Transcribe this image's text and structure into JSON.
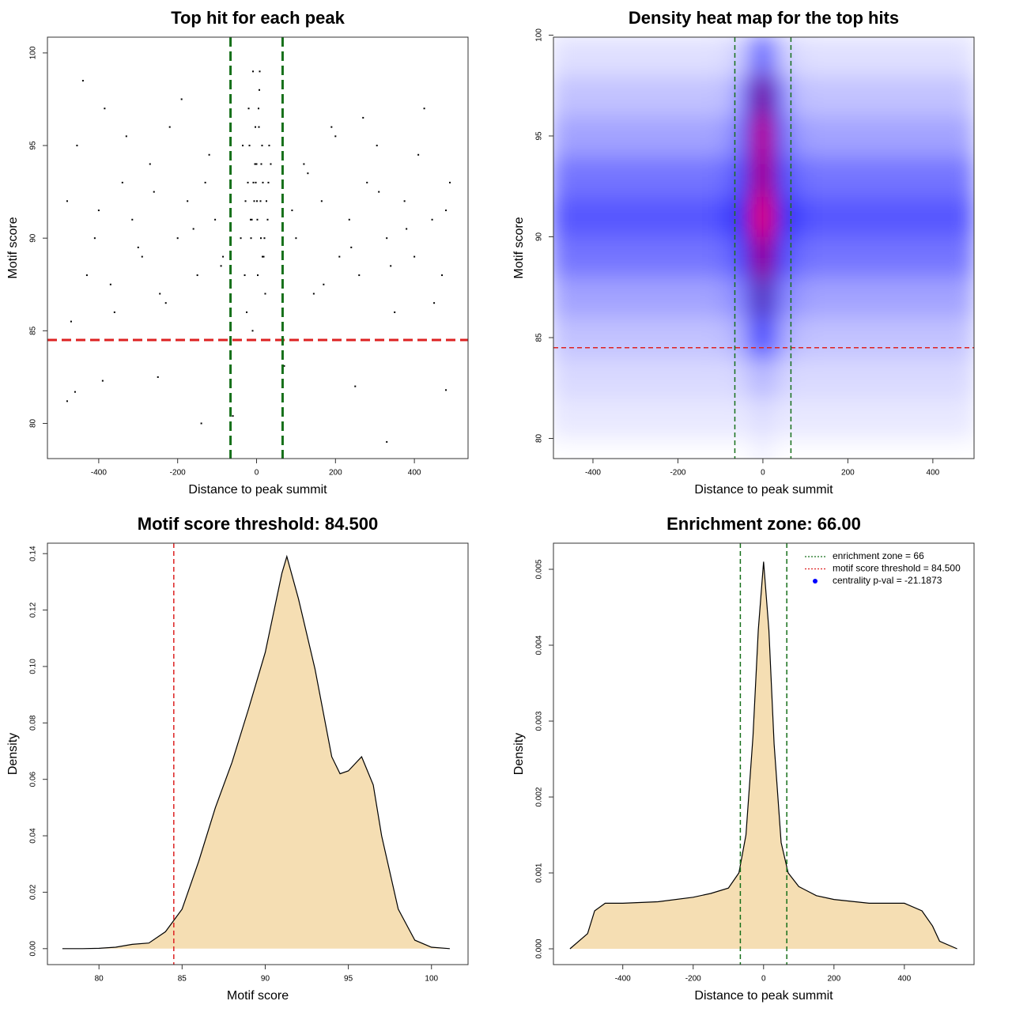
{
  "chart_data": [
    {
      "type": "scatter",
      "title": "Top hit for each peak",
      "x_label": "Distance to peak summit",
      "y_label": "Motif score",
      "xlim": [
        -530,
        536
      ],
      "ylim": [
        78.1,
        100.85
      ],
      "xticks": [
        -400,
        -200,
        0,
        200,
        400
      ],
      "yticks": [
        80,
        85,
        90,
        95,
        100
      ],
      "color": "#000000",
      "hlines": [
        {
          "value": 84.5,
          "color": "#dd2222"
        }
      ],
      "vlines": [
        {
          "value": -66,
          "color": "#16701a"
        },
        {
          "value": 66,
          "color": "#16701a"
        }
      ],
      "x": [
        -480,
        -455,
        -430,
        -410,
        -385,
        -360,
        -340,
        -315,
        -290,
        -270,
        -245,
        -220,
        -200,
        -175,
        -150,
        -130,
        -105,
        -85,
        100,
        120,
        145,
        165,
        190,
        210,
        235,
        260,
        280,
        305,
        330,
        350,
        375,
        400,
        425,
        445,
        470,
        490,
        -470,
        -440,
        -400,
        -370,
        -330,
        -300,
        -260,
        -230,
        -190,
        -160,
        -120,
        -90,
        90,
        130,
        170,
        200,
        240,
        270,
        310,
        340,
        380,
        410,
        450,
        480,
        -35,
        -28,
        -20,
        -14,
        -8,
        -3,
        2,
        7,
        12,
        18,
        25,
        32,
        -30,
        -22,
        -15,
        -9,
        -4,
        1,
        6,
        11,
        16,
        22,
        28,
        36,
        -40,
        -18,
        -6,
        5,
        15,
        30,
        -25,
        -12,
        0,
        10,
        20,
        -10,
        3,
        8,
        -2,
        14,
        -480,
        -460,
        -390,
        -250,
        -140,
        -60,
        70,
        250,
        330,
        480
      ],
      "values": [
        92,
        95,
        88,
        90,
        97,
        86,
        93,
        91,
        89,
        94,
        87,
        96,
        90,
        92,
        88,
        93,
        91,
        89,
        90,
        94,
        87,
        92,
        96,
        89,
        91,
        88,
        93,
        95,
        90,
        86,
        92,
        89,
        97,
        91,
        88,
        93,
        85.5,
        98.5,
        91.5,
        87.5,
        95.5,
        89.5,
        92.5,
        86.5,
        97.5,
        90.5,
        94.5,
        88.5,
        91.5,
        93.5,
        87.5,
        95.5,
        89.5,
        96.5,
        92.5,
        88.5,
        90.5,
        94.5,
        86.5,
        91.5,
        95,
        92,
        97,
        90,
        93,
        96,
        91,
        98,
        94,
        89,
        92,
        95,
        88,
        93,
        91,
        99,
        94,
        92,
        96,
        90,
        93,
        87,
        91,
        94,
        90,
        95,
        92,
        97,
        89,
        93,
        86,
        91,
        94,
        92,
        90,
        85,
        88,
        99,
        93,
        95,
        81.2,
        81.7,
        82.3,
        82.5,
        80,
        80.4,
        83.1,
        82,
        79,
        81.8
      ]
    },
    {
      "type": "heatmap",
      "title": "Density heat map for the top hits",
      "x_label": "Distance to peak summit",
      "y_label": "Motif score",
      "xlim": [
        -493,
        497
      ],
      "ylim": [
        79.0,
        99.9
      ],
      "xticks": [
        -400,
        -200,
        0,
        200,
        400
      ],
      "yticks": [
        80,
        85,
        90,
        95,
        100
      ],
      "colors": [
        "#ffffff",
        "#0000ff",
        "#7a0a6e",
        "#ff0000"
      ],
      "hlines": [
        {
          "value": 84.5,
          "color": "#dd2222"
        }
      ],
      "vlines": [
        {
          "value": -66,
          "color": "#16701a"
        },
        {
          "value": 66,
          "color": "#16701a"
        }
      ],
      "x_edges": [
        -500,
        -400,
        -300,
        -200,
        -100,
        -50,
        -20,
        20,
        50,
        100,
        200,
        300,
        400,
        500
      ],
      "y_edges": [
        78,
        80,
        82,
        84,
        86,
        88,
        90,
        92,
        94,
        96,
        98,
        100
      ],
      "z": [
        [
          0,
          0,
          0,
          0,
          0,
          0,
          0.02,
          0,
          0,
          0,
          0,
          0,
          0
        ],
        [
          0.03,
          0.03,
          0.03,
          0.03,
          0.03,
          0.03,
          0.05,
          0.03,
          0.03,
          0.03,
          0.03,
          0.03,
          0.03
        ],
        [
          0.05,
          0.05,
          0.05,
          0.05,
          0.05,
          0.07,
          0.1,
          0.07,
          0.05,
          0.05,
          0.05,
          0.05,
          0.05
        ],
        [
          0.08,
          0.08,
          0.08,
          0.08,
          0.09,
          0.15,
          0.3,
          0.15,
          0.09,
          0.08,
          0.08,
          0.08,
          0.08
        ],
        [
          0.12,
          0.12,
          0.12,
          0.12,
          0.14,
          0.2,
          0.55,
          0.2,
          0.14,
          0.12,
          0.12,
          0.12,
          0.12
        ],
        [
          0.18,
          0.18,
          0.18,
          0.18,
          0.2,
          0.35,
          0.8,
          0.35,
          0.2,
          0.18,
          0.18,
          0.18,
          0.18
        ],
        [
          0.22,
          0.22,
          0.22,
          0.22,
          0.25,
          0.42,
          1.0,
          0.42,
          0.25,
          0.22,
          0.22,
          0.22,
          0.22
        ],
        [
          0.18,
          0.18,
          0.18,
          0.18,
          0.2,
          0.36,
          0.85,
          0.36,
          0.2,
          0.18,
          0.18,
          0.18,
          0.18
        ],
        [
          0.12,
          0.12,
          0.12,
          0.12,
          0.14,
          0.35,
          0.9,
          0.35,
          0.14,
          0.12,
          0.12,
          0.12,
          0.12
        ],
        [
          0.08,
          0.08,
          0.08,
          0.08,
          0.09,
          0.27,
          0.7,
          0.27,
          0.09,
          0.08,
          0.08,
          0.08,
          0.08
        ],
        [
          0.04,
          0.04,
          0.04,
          0.04,
          0.05,
          0.1,
          0.25,
          0.1,
          0.05,
          0.04,
          0.04,
          0.04,
          0.04
        ]
      ]
    },
    {
      "type": "area",
      "title": "Motif score threshold: 84.500",
      "x_label": "Motif score",
      "y_label": "Density",
      "xlim": [
        76.9,
        102.2
      ],
      "ylim": [
        -0.00566,
        0.1437
      ],
      "xticks": [
        80,
        85,
        90,
        95,
        100
      ],
      "yticks": [
        {
          "value": 0,
          "label": "0.00"
        },
        {
          "value": 0.02,
          "label": "0.02"
        },
        {
          "value": 0.04,
          "label": "0.04"
        },
        {
          "value": 0.06,
          "label": "0.06"
        },
        {
          "value": 0.08,
          "label": "0.08"
        },
        {
          "value": 0.1,
          "label": "0.10"
        },
        {
          "value": 0.12,
          "label": "0.12"
        },
        {
          "value": 0.14,
          "label": "0.14"
        }
      ],
      "fill": "#f5deb3",
      "vlines": [
        {
          "value": 84.5,
          "color": "#dd2222"
        }
      ],
      "x": [
        77.8,
        79,
        80,
        81,
        82,
        83,
        84,
        85,
        86,
        87,
        88,
        89,
        90,
        91,
        91.3,
        92,
        93,
        94,
        94.5,
        95,
        95.8,
        96.5,
        97,
        98,
        99,
        100,
        101.1
      ],
      "values": [
        0,
        0,
        0.0001,
        0.0005,
        0.0015,
        0.002,
        0.006,
        0.014,
        0.031,
        0.05,
        0.066,
        0.085,
        0.105,
        0.133,
        0.139,
        0.124,
        0.099,
        0.068,
        0.062,
        0.063,
        0.068,
        0.058,
        0.04,
        0.014,
        0.003,
        0.0005,
        0
      ]
    },
    {
      "type": "area",
      "title": "Enrichment zone: 66.00",
      "x_label": "Distance to peak summit",
      "y_label": "Density",
      "xlim": [
        -597,
        598
      ],
      "ylim": [
        -0.000208,
        0.005344
      ],
      "xticks": [
        -400,
        -200,
        0,
        200,
        400
      ],
      "yticks": [
        {
          "value": 0,
          "label": "0.000"
        },
        {
          "value": 0.001,
          "label": "0.001"
        },
        {
          "value": 0.002,
          "label": "0.002"
        },
        {
          "value": 0.003,
          "label": "0.003"
        },
        {
          "value": 0.004,
          "label": "0.004"
        },
        {
          "value": 0.005,
          "label": "0.005"
        }
      ],
      "fill": "#f5deb3",
      "vlines": [
        {
          "value": -66,
          "color": "#16701a"
        },
        {
          "value": 66,
          "color": "#16701a"
        }
      ],
      "legend": [
        {
          "label": "enrichment zone = 66",
          "color": "#16701a",
          "symbol": "line"
        },
        {
          "label": "motif score threshold = 84.500",
          "color": "#dd2222",
          "symbol": "line"
        },
        {
          "label": "centrality p-val = -21.1873",
          "color": "#0000ff",
          "symbol": "point"
        }
      ],
      "x": [
        -550,
        -500,
        -480,
        -450,
        -400,
        -300,
        -200,
        -150,
        -100,
        -70,
        -50,
        -30,
        -15,
        0,
        15,
        30,
        50,
        70,
        100,
        150,
        200,
        300,
        400,
        450,
        480,
        500,
        550
      ],
      "values": [
        0,
        0.0002,
        0.0005,
        0.0006,
        0.0006,
        0.00062,
        0.00068,
        0.00073,
        0.0008,
        0.001,
        0.0015,
        0.0028,
        0.0042,
        0.0051,
        0.0042,
        0.0027,
        0.0014,
        0.001,
        0.00082,
        0.0007,
        0.00065,
        0.0006,
        0.0006,
        0.0005,
        0.0003,
        0.0001,
        0
      ]
    }
  ]
}
